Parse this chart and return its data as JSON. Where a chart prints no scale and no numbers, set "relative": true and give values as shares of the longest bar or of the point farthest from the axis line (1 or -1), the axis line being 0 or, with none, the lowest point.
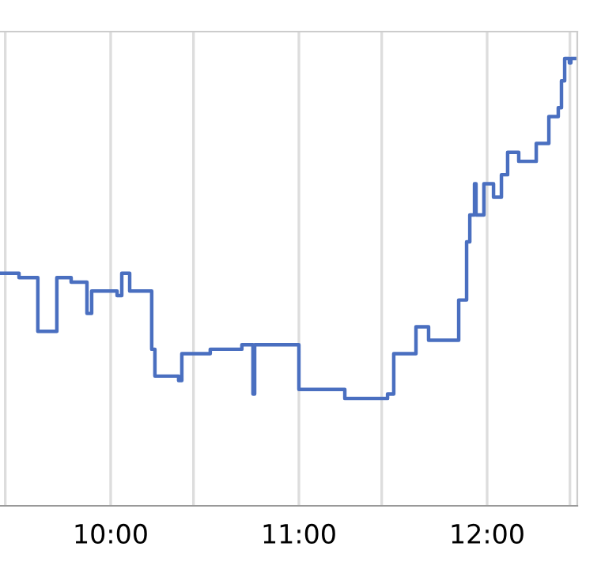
{
  "chart_data": {
    "type": "step",
    "relative": true,
    "grid": "x",
    "legend": false,
    "marker": "none",
    "line_style": "solid",
    "xlim": [
      9.412,
      12.479
    ],
    "xticks": [
      {
        "value": 9.44,
        "label": null
      },
      {
        "value": 10,
        "label": "10:00"
      },
      {
        "value": 10.44,
        "label": null
      },
      {
        "value": 11,
        "label": "11:00"
      },
      {
        "value": 11.44,
        "label": null
      },
      {
        "value": 12,
        "label": "12:00"
      },
      {
        "value": 12.44,
        "label": null
      }
    ],
    "series": [
      {
        "color": "#4a6fc0",
        "x": [
          9.412,
          9.513,
          9.613,
          9.714,
          9.79,
          9.874,
          9.899,
          9.983,
          10.034,
          10.059,
          10.101,
          10.218,
          10.235,
          10.361,
          10.378,
          10.529,
          10.647,
          10.697,
          10.756,
          10.765,
          11.0,
          11.244,
          11.471,
          11.504,
          11.622,
          11.689,
          11.849,
          11.891,
          11.908,
          11.933,
          11.941,
          11.983,
          12.034,
          12.076,
          12.109,
          12.168,
          12.261,
          12.328,
          12.378,
          12.395,
          12.412,
          12.437,
          12.445,
          12.479
        ],
        "values": [
          0.52,
          0.51,
          0.39,
          0.51,
          0.5,
          0.43,
          0.48,
          0.48,
          0.47,
          0.52,
          0.48,
          0.35,
          0.29,
          0.28,
          0.34,
          0.35,
          0.35,
          0.36,
          0.25,
          0.36,
          0.26,
          0.24,
          0.25,
          0.34,
          0.4,
          0.37,
          0.46,
          0.59,
          0.65,
          0.72,
          0.65,
          0.72,
          0.69,
          0.74,
          0.79,
          0.77,
          0.81,
          0.87,
          0.89,
          0.95,
          1.0,
          0.99,
          1.0,
          1.0
        ]
      }
    ]
  }
}
